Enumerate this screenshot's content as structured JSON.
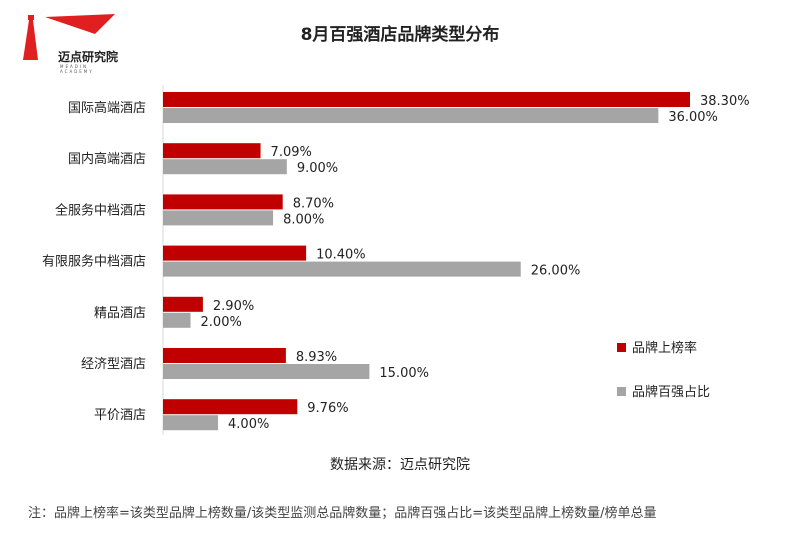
{
  "logo": {
    "name": "迈点研究院",
    "sub": "MEADIN ACADEMY"
  },
  "chart_data": {
    "type": "bar",
    "orientation": "horizontal",
    "title": "8月百强酒店品牌类型分布",
    "categories": [
      "国际高端酒店",
      "国内高端酒店",
      "全服务中档酒店",
      "有限服务中档酒店",
      "精品酒店",
      "经济型酒店",
      "平价酒店"
    ],
    "series": [
      {
        "name": "品牌上榜率",
        "color": "#C00000",
        "values": [
          38.3,
          7.09,
          8.7,
          10.4,
          2.9,
          8.93,
          9.76
        ],
        "labels": [
          "38.30%",
          "7.09%",
          "8.70%",
          "10.40%",
          "2.90%",
          "8.93%",
          "9.76%"
        ]
      },
      {
        "name": "品牌百强占比",
        "color": "#A5A5A5",
        "values": [
          36.0,
          9.0,
          8.0,
          26.0,
          2.0,
          15.0,
          4.0
        ],
        "labels": [
          "36.00%",
          "9.00%",
          "8.00%",
          "26.00%",
          "2.00%",
          "15.00%",
          "4.00%"
        ]
      }
    ],
    "xlim": [
      0,
      40
    ],
    "legend": "right",
    "grid": false
  },
  "source": "数据来源：迈点研究院",
  "note": "注：品牌上榜率=该类型品牌上榜数量/该类型监测总品牌数量；品牌百强占比=该类型品牌上榜数量/榜单总量"
}
